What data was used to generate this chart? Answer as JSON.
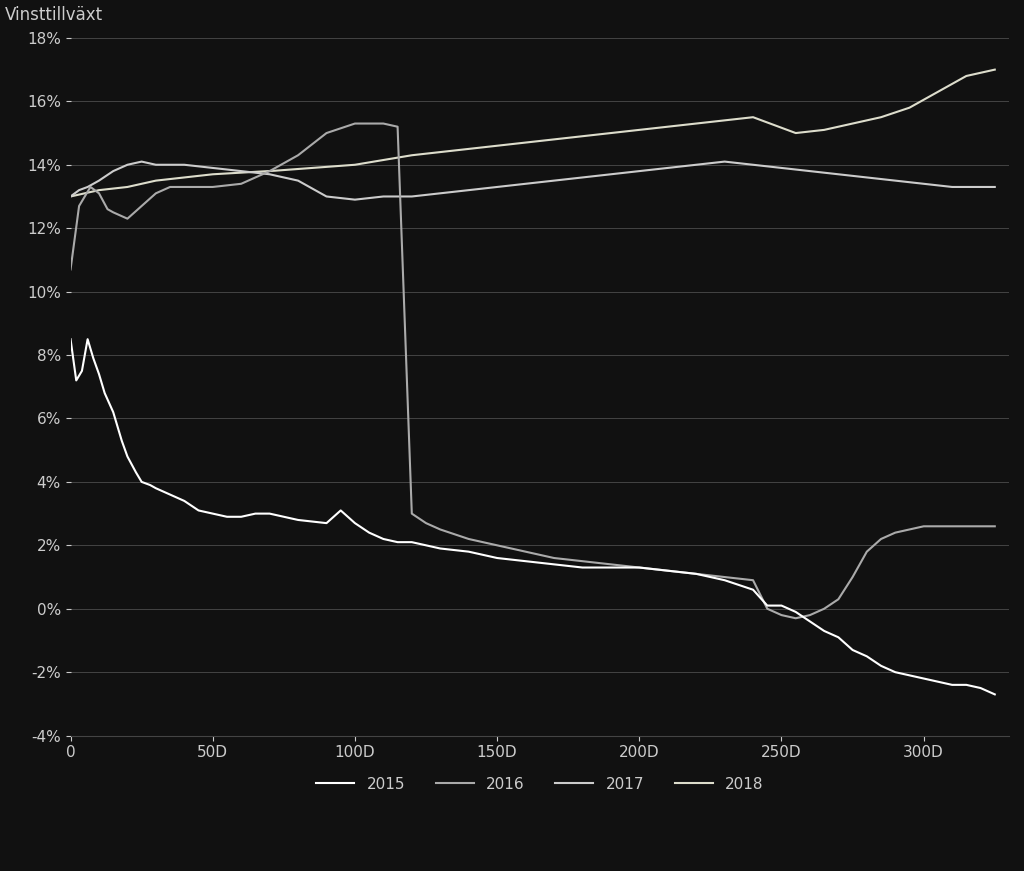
{
  "background_color": "#111111",
  "text_color": "#cccccc",
  "grid_color": "#444444",
  "ylabel": "Vinsttillväxt",
  "ylim": [
    -0.04,
    0.18
  ],
  "xlim": [
    0,
    330
  ],
  "yticks": [
    -0.04,
    -0.02,
    0.0,
    0.02,
    0.04,
    0.06,
    0.08,
    0.1,
    0.12,
    0.14,
    0.16,
    0.18
  ],
  "xticks": [
    0,
    50,
    100,
    150,
    200,
    250,
    300
  ],
  "xtick_labels": [
    "0",
    "50D",
    "100D",
    "150D",
    "200D",
    "250D",
    "300D"
  ],
  "line_colors": {
    "2015": "#ffffff",
    "2016": "#aaaaaa",
    "2017": "#cccccc",
    "2018": "#ddddcc"
  },
  "line_widths": {
    "2015": 1.5,
    "2016": 1.5,
    "2017": 1.5,
    "2018": 1.5
  },
  "legend_fontsize": 11,
  "axis_fontsize": 11,
  "title_fontsize": 12
}
